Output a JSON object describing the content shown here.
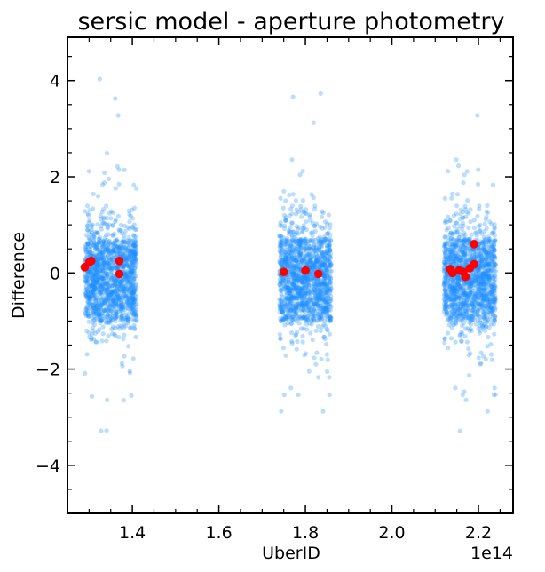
{
  "chart_data": {
    "type": "scatter",
    "title": "sersic model - aperture photometry",
    "xlabel": "UberID",
    "ylabel": "Difference",
    "x_offset_label": "1e14",
    "x_scale": 100000000000000.0,
    "xlim": [
      1.25,
      2.28
    ],
    "ylim": [
      -5.0,
      4.9
    ],
    "x_ticks": [
      1.4,
      1.6,
      1.8,
      2.0,
      2.2
    ],
    "x_tick_labels": [
      "1.4",
      "1.6",
      "1.8",
      "2.0",
      "2.2"
    ],
    "y_ticks": [
      -4,
      -2,
      0,
      2,
      4
    ],
    "y_tick_labels": [
      "−4",
      "−2",
      "0",
      "2",
      "4"
    ],
    "grid": false,
    "series": [
      {
        "color": "#1E90FF",
        "marker": "circle-translucent",
        "clusters": [
          {
            "x_range": [
              1.29,
              1.41
            ],
            "core_y": [
              -1.0,
              0.7
            ]
          },
          {
            "x_range": [
              1.74,
              1.86
            ],
            "core_y": [
              -1.0,
              0.7
            ]
          },
          {
            "x_range": [
              2.12,
              2.24
            ],
            "core_y": [
              -1.0,
              0.7
            ]
          }
        ]
      },
      {
        "color": "#FF0000",
        "marker": "circle",
        "points": [
          {
            "x": 1.29,
            "y": 0.12
          },
          {
            "x": 1.3,
            "y": 0.22
          },
          {
            "x": 1.305,
            "y": 0.25
          },
          {
            "x": 1.37,
            "y": 0.25
          },
          {
            "x": 1.37,
            "y": -0.02
          },
          {
            "x": 1.75,
            "y": 0.02
          },
          {
            "x": 1.8,
            "y": 0.05
          },
          {
            "x": 1.83,
            "y": -0.02
          },
          {
            "x": 2.135,
            "y": 0.08
          },
          {
            "x": 2.14,
            "y": 0.0
          },
          {
            "x": 2.155,
            "y": 0.05
          },
          {
            "x": 2.165,
            "y": 0.02
          },
          {
            "x": 2.17,
            "y": -0.08
          },
          {
            "x": 2.18,
            "y": 0.1
          },
          {
            "x": 2.19,
            "y": 0.18
          },
          {
            "x": 2.19,
            "y": 0.6
          }
        ]
      }
    ]
  }
}
